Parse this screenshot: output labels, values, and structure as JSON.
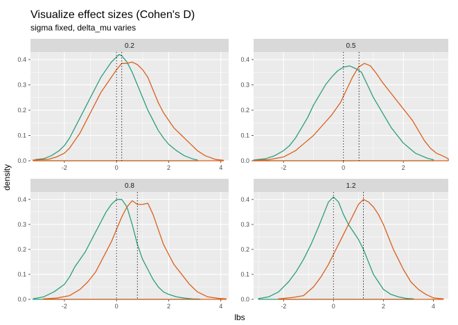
{
  "title": "Visualize effect sizes (Cohen's D)",
  "subtitle": "sigma fixed, delta_mu varies",
  "xlabel": "lbs",
  "ylabel": "density",
  "colors": {
    "series_a": "#2a9d7b",
    "series_b": "#d95f1a",
    "panel_bg": "#ebebeb",
    "strip_bg": "#d9d9d9",
    "grid": "#ffffff"
  },
  "chart_data": {
    "type": "line",
    "facet_layout": "2x2",
    "y_range": [
      0,
      0.43
    ],
    "grid": true,
    "panels": [
      {
        "label": "0.2",
        "x_range": [
          -3.3,
          4.3
        ],
        "x_ticks": [
          -2,
          0,
          2,
          4
        ],
        "y_ticks": [
          0.0,
          0.1,
          0.2,
          0.3,
          0.4
        ],
        "vlines": [
          0.0,
          0.2
        ],
        "series": [
          {
            "color_key": "series_a",
            "x": [
              -3.1,
              -2.8,
              -2.5,
              -2.2,
              -2.0,
              -1.8,
              -1.6,
              -1.4,
              -1.2,
              -1.0,
              -0.8,
              -0.6,
              -0.4,
              -0.2,
              0.0,
              0.1,
              0.2,
              0.4,
              0.6,
              0.8,
              1.0,
              1.2,
              1.4,
              1.6,
              1.8,
              2.0,
              2.3,
              2.6,
              2.9,
              3.1
            ],
            "y": [
              0.005,
              0.008,
              0.02,
              0.04,
              0.06,
              0.09,
              0.13,
              0.17,
              0.21,
              0.25,
              0.29,
              0.33,
              0.36,
              0.39,
              0.41,
              0.42,
              0.415,
              0.39,
              0.35,
              0.3,
              0.25,
              0.2,
              0.16,
              0.12,
              0.09,
              0.065,
              0.04,
              0.02,
              0.008,
              0.003
            ]
          },
          {
            "color_key": "series_b",
            "x": [
              -3.2,
              -2.6,
              -2.3,
              -2.0,
              -1.8,
              -1.6,
              -1.4,
              -1.2,
              -1.0,
              -0.8,
              -0.6,
              -0.4,
              -0.2,
              0.0,
              0.2,
              0.4,
              0.6,
              0.8,
              1.0,
              1.2,
              1.4,
              1.6,
              1.8,
              2.0,
              2.2,
              2.5,
              2.8,
              3.1,
              3.4,
              3.8,
              4.1
            ],
            "y": [
              0.003,
              0.006,
              0.015,
              0.03,
              0.05,
              0.08,
              0.11,
              0.15,
              0.19,
              0.23,
              0.27,
              0.3,
              0.33,
              0.36,
              0.385,
              0.385,
              0.39,
              0.38,
              0.36,
              0.33,
              0.28,
              0.23,
              0.19,
              0.16,
              0.13,
              0.1,
              0.07,
              0.04,
              0.02,
              0.005,
              0.002
            ]
          }
        ]
      },
      {
        "label": "0.5",
        "x_range": [
          -3.0,
          3.5
        ],
        "x_ticks": [
          -2,
          0,
          2
        ],
        "y_ticks": [
          0.0,
          0.1,
          0.2,
          0.3,
          0.4
        ],
        "vlines": [
          0.0,
          0.52
        ],
        "series": [
          {
            "color_key": "series_a",
            "x": [
              -3.0,
              -2.6,
              -2.3,
              -2.0,
              -1.8,
              -1.6,
              -1.4,
              -1.2,
              -1.0,
              -0.8,
              -0.6,
              -0.4,
              -0.2,
              0.0,
              0.2,
              0.4,
              0.6,
              0.8,
              1.0,
              1.2,
              1.4,
              1.6,
              1.8,
              2.0,
              2.2,
              2.4,
              2.6,
              2.8,
              3.0
            ],
            "y": [
              0.003,
              0.008,
              0.02,
              0.04,
              0.06,
              0.09,
              0.13,
              0.17,
              0.22,
              0.26,
              0.3,
              0.33,
              0.355,
              0.37,
              0.375,
              0.365,
              0.35,
              0.3,
              0.25,
              0.21,
              0.17,
              0.13,
              0.1,
              0.07,
              0.05,
              0.03,
              0.02,
              0.01,
              0.004
            ]
          },
          {
            "color_key": "series_b",
            "x": [
              -3.0,
              -2.5,
              -2.0,
              -1.6,
              -1.3,
              -1.0,
              -0.7,
              -0.4,
              -0.1,
              0.1,
              0.3,
              0.5,
              0.7,
              0.9,
              1.1,
              1.3,
              1.5,
              1.7,
              1.9,
              2.1,
              2.3,
              2.5,
              2.7,
              2.9,
              3.1,
              3.3,
              3.5
            ],
            "y": [
              0.002,
              0.004,
              0.015,
              0.04,
              0.07,
              0.1,
              0.14,
              0.18,
              0.23,
              0.28,
              0.33,
              0.37,
              0.385,
              0.375,
              0.345,
              0.31,
              0.28,
              0.25,
              0.22,
              0.19,
              0.16,
              0.12,
              0.08,
              0.05,
              0.03,
              0.02,
              0.008
            ]
          }
        ]
      },
      {
        "label": "0.8",
        "x_range": [
          -3.3,
          4.3
        ],
        "x_ticks": [
          -2,
          0,
          2,
          4
        ],
        "y_ticks": [
          0.0,
          0.1,
          0.2,
          0.3,
          0.4
        ],
        "vlines": [
          0.0,
          0.8
        ],
        "series": [
          {
            "color_key": "series_a",
            "x": [
              -3.2,
              -2.8,
              -2.4,
              -2.0,
              -1.8,
              -1.6,
              -1.4,
              -1.2,
              -1.0,
              -0.8,
              -0.6,
              -0.4,
              -0.2,
              0.0,
              0.2,
              0.4,
              0.6,
              0.8,
              1.0,
              1.2,
              1.4,
              1.6,
              1.8,
              2.0,
              2.3,
              2.6,
              2.9,
              3.2
            ],
            "y": [
              0.002,
              0.01,
              0.03,
              0.06,
              0.09,
              0.13,
              0.16,
              0.19,
              0.23,
              0.27,
              0.31,
              0.35,
              0.38,
              0.4,
              0.4,
              0.37,
              0.3,
              0.22,
              0.16,
              0.12,
              0.08,
              0.05,
              0.03,
              0.02,
              0.01,
              0.005,
              0.002,
              0.001
            ]
          },
          {
            "color_key": "series_b",
            "x": [
              -2.8,
              -2.3,
              -1.8,
              -1.4,
              -1.1,
              -0.8,
              -0.5,
              -0.2,
              0.0,
              0.2,
              0.4,
              0.6,
              0.8,
              1.0,
              1.2,
              1.4,
              1.6,
              1.8,
              2.0,
              2.2,
              2.5,
              2.8,
              3.1,
              3.5,
              3.9,
              4.2
            ],
            "y": [
              0.002,
              0.005,
              0.015,
              0.04,
              0.07,
              0.11,
              0.17,
              0.23,
              0.28,
              0.33,
              0.37,
              0.395,
              0.38,
              0.38,
              0.385,
              0.34,
              0.28,
              0.22,
              0.18,
              0.14,
              0.1,
              0.06,
              0.03,
              0.01,
              0.004,
              0.002
            ]
          }
        ]
      },
      {
        "label": "1.2",
        "x_range": [
          -3.2,
          4.6
        ],
        "x_ticks": [
          -2,
          0,
          2,
          4
        ],
        "y_ticks": [
          0.0,
          0.1,
          0.2,
          0.3,
          0.4
        ],
        "vlines": [
          0.0,
          1.2
        ],
        "series": [
          {
            "color_key": "series_a",
            "x": [
              -3.0,
              -2.6,
              -2.2,
              -1.8,
              -1.5,
              -1.2,
              -0.9,
              -0.6,
              -0.4,
              -0.2,
              0.0,
              0.2,
              0.4,
              0.6,
              0.8,
              1.0,
              1.2,
              1.4,
              1.6,
              1.8,
              2.0,
              2.3,
              2.6,
              2.9,
              3.2
            ],
            "y": [
              0.003,
              0.01,
              0.03,
              0.07,
              0.11,
              0.16,
              0.22,
              0.29,
              0.34,
              0.39,
              0.41,
              0.39,
              0.34,
              0.3,
              0.27,
              0.24,
              0.2,
              0.15,
              0.1,
              0.07,
              0.04,
              0.02,
              0.01,
              0.004,
              0.002
            ]
          },
          {
            "color_key": "series_b",
            "x": [
              -2.2,
              -1.6,
              -1.2,
              -0.8,
              -0.5,
              -0.2,
              0.0,
              0.2,
              0.4,
              0.6,
              0.8,
              1.0,
              1.2,
              1.4,
              1.6,
              1.8,
              2.0,
              2.2,
              2.4,
              2.6,
              2.8,
              3.1,
              3.4,
              3.7,
              4.0,
              4.4
            ],
            "y": [
              0.002,
              0.008,
              0.015,
              0.05,
              0.09,
              0.14,
              0.18,
              0.22,
              0.26,
              0.3,
              0.34,
              0.38,
              0.4,
              0.39,
              0.37,
              0.34,
              0.3,
              0.25,
              0.2,
              0.16,
              0.12,
              0.07,
              0.04,
              0.02,
              0.006,
              0.002
            ]
          }
        ]
      }
    ]
  }
}
